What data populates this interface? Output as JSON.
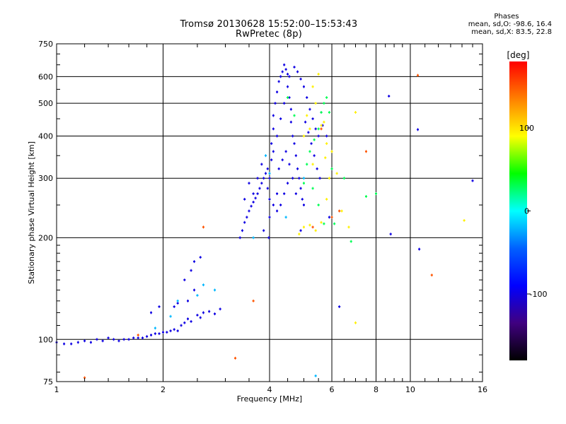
{
  "title_line1": "Tromsø 20130628 15:52:00–15:53:43",
  "title_line2": "RwPretec (8p)",
  "stats": {
    "header": "Phases",
    "line1": "mean, sd,O: -98.6, 16.4",
    "line2": "mean, sd,X:  83.5, 22.8"
  },
  "colorbar": {
    "label": "[deg]",
    "ticks": [
      "100",
      "0",
      "-100"
    ],
    "tick_values": [
      100,
      0,
      -100
    ],
    "range": [
      -180,
      180
    ],
    "colors": [
      "#ff0000",
      "#ff8000",
      "#ffff00",
      "#00ff00",
      "#00ffff",
      "#0060ff",
      "#0000ff",
      "#400080",
      "#000000"
    ]
  },
  "chart_data": {
    "type": "scatter",
    "title": "Tromsø 20130628 15:52:00–15:53:43",
    "subtitle": "RwPretec (8p)",
    "xlabel": "Frequency [MHz]",
    "ylabel": "Stationary phase Virtual Height [km]",
    "x_scale": "log",
    "y_scale": "log",
    "xlim": [
      1,
      16
    ],
    "ylim": [
      75,
      750
    ],
    "x_ticks": [
      1,
      2,
      4,
      6,
      8,
      10,
      16
    ],
    "x_tick_labels": [
      "1",
      "2",
      "4",
      "6",
      "8",
      "10",
      "16"
    ],
    "y_ticks": [
      75,
      100,
      200,
      300,
      400,
      500,
      600,
      750
    ],
    "y_tick_labels": [
      "75",
      "100",
      "200",
      "300",
      "400",
      "500",
      "600",
      "750"
    ],
    "grid": true,
    "series": [
      {
        "color_value": -100,
        "points": [
          [
            1.0,
            98
          ],
          [
            1.05,
            97
          ],
          [
            1.1,
            97
          ],
          [
            1.15,
            98
          ],
          [
            1.2,
            99
          ],
          [
            1.25,
            98
          ],
          [
            1.3,
            100
          ],
          [
            1.35,
            99
          ],
          [
            1.4,
            101
          ],
          [
            1.45,
            100
          ],
          [
            1.5,
            99
          ],
          [
            1.55,
            100
          ],
          [
            1.6,
            100
          ],
          [
            1.65,
            101
          ],
          [
            1.7,
            101
          ],
          [
            1.75,
            101
          ],
          [
            1.8,
            102
          ],
          [
            1.85,
            103
          ],
          [
            1.9,
            104
          ],
          [
            1.95,
            104
          ],
          [
            2.0,
            105
          ],
          [
            2.05,
            105
          ],
          [
            2.1,
            106
          ],
          [
            2.15,
            107
          ],
          [
            2.2,
            106
          ],
          [
            2.25,
            110
          ],
          [
            2.3,
            112
          ],
          [
            2.35,
            115
          ],
          [
            2.4,
            113
          ],
          [
            2.5,
            118
          ],
          [
            2.55,
            116
          ],
          [
            2.6,
            120
          ],
          [
            2.7,
            121
          ],
          [
            2.8,
            119
          ],
          [
            2.9,
            123
          ],
          [
            1.85,
            120
          ],
          [
            1.95,
            125
          ],
          [
            2.15,
            125
          ],
          [
            2.2,
            128
          ],
          [
            2.35,
            130
          ],
          [
            2.45,
            140
          ],
          [
            2.4,
            160
          ],
          [
            2.45,
            170
          ],
          [
            2.55,
            175
          ],
          [
            2.3,
            150
          ],
          [
            3.3,
            200
          ],
          [
            3.35,
            210
          ],
          [
            3.4,
            222
          ],
          [
            3.45,
            230
          ],
          [
            3.5,
            240
          ],
          [
            3.55,
            248
          ],
          [
            3.6,
            255
          ],
          [
            3.65,
            262
          ],
          [
            3.7,
            270
          ],
          [
            3.75,
            280
          ],
          [
            3.8,
            290
          ],
          [
            3.85,
            300
          ],
          [
            3.9,
            310
          ],
          [
            3.95,
            320
          ],
          [
            3.4,
            260
          ],
          [
            3.5,
            290
          ],
          [
            3.6,
            270
          ],
          [
            3.7,
            300
          ],
          [
            3.8,
            330
          ],
          [
            3.95,
            280
          ],
          [
            3.98,
            200
          ],
          [
            4.0,
            260
          ],
          [
            4.0,
            300
          ],
          [
            4.05,
            340
          ],
          [
            4.05,
            380
          ],
          [
            4.1,
            420
          ],
          [
            4.1,
            460
          ],
          [
            4.15,
            500
          ],
          [
            4.2,
            540
          ],
          [
            4.25,
            580
          ],
          [
            4.3,
            600
          ],
          [
            4.35,
            620
          ],
          [
            4.4,
            650
          ],
          [
            4.45,
            630
          ],
          [
            4.5,
            610
          ],
          [
            4.5,
            560
          ],
          [
            4.55,
            520
          ],
          [
            4.6,
            480
          ],
          [
            4.6,
            440
          ],
          [
            4.65,
            400
          ],
          [
            4.7,
            380
          ],
          [
            4.75,
            350
          ],
          [
            4.8,
            320
          ],
          [
            4.85,
            300
          ],
          [
            4.9,
            280
          ],
          [
            4.95,
            260
          ],
          [
            5.0,
            250
          ],
          [
            4.2,
            240
          ],
          [
            4.3,
            250
          ],
          [
            4.4,
            270
          ],
          [
            4.5,
            290
          ],
          [
            4.1,
            360
          ],
          [
            4.2,
            400
          ],
          [
            4.3,
            450
          ],
          [
            4.4,
            500
          ],
          [
            4.55,
            600
          ],
          [
            4.7,
            640
          ],
          [
            4.8,
            620
          ],
          [
            4.9,
            590
          ],
          [
            5.0,
            560
          ],
          [
            5.1,
            520
          ],
          [
            5.2,
            480
          ],
          [
            5.3,
            450
          ],
          [
            5.4,
            420
          ],
          [
            5.5,
            400
          ],
          [
            4.25,
            320
          ],
          [
            4.35,
            340
          ],
          [
            4.45,
            360
          ],
          [
            4.55,
            330
          ],
          [
            4.65,
            300
          ],
          [
            4.75,
            270
          ],
          [
            5.05,
            440
          ],
          [
            5.15,
            410
          ],
          [
            5.25,
            380
          ],
          [
            5.35,
            350
          ],
          [
            5.45,
            320
          ],
          [
            5.55,
            300
          ],
          [
            5.6,
            470
          ],
          [
            5.65,
            430
          ],
          [
            4.0,
            230
          ],
          [
            4.1,
            250
          ],
          [
            4.2,
            270
          ],
          [
            5.8,
            400
          ],
          [
            6.3,
            125
          ],
          [
            8.8,
            205
          ],
          [
            8.7,
            525
          ],
          [
            10.5,
            418
          ],
          [
            10.6,
            185
          ],
          [
            15.0,
            295
          ],
          [
            5.9,
            230
          ],
          [
            3.85,
            210
          ],
          [
            4.9,
            210
          ]
        ]
      },
      {
        "color_value": -20,
        "points": [
          [
            2.5,
            135
          ],
          [
            2.2,
            130
          ],
          [
            2.6,
            145
          ],
          [
            1.9,
            108
          ],
          [
            2.1,
            117
          ],
          [
            5.4,
            78
          ],
          [
            3.6,
            200
          ],
          [
            4.45,
            230
          ],
          [
            4.0,
            310
          ],
          [
            5.0,
            300
          ],
          [
            2.8,
            140
          ],
          [
            3.9,
            350
          ]
        ]
      },
      {
        "color_value": 30,
        "points": [
          [
            5.1,
            330
          ],
          [
            5.2,
            360
          ],
          [
            5.35,
            390
          ],
          [
            5.5,
            420
          ],
          [
            5.6,
            470
          ],
          [
            5.7,
            500
          ],
          [
            5.8,
            520
          ],
          [
            5.9,
            470
          ],
          [
            5.5,
            250
          ],
          [
            5.7,
            220
          ],
          [
            6.1,
            220
          ],
          [
            6.5,
            300
          ],
          [
            7.5,
            265
          ],
          [
            6.8,
            195
          ],
          [
            4.5,
            520
          ],
          [
            4.7,
            460
          ],
          [
            5.0,
            290
          ],
          [
            5.3,
            280
          ],
          [
            6.0,
            320
          ],
          [
            8.0,
            270
          ]
        ]
      },
      {
        "color_value": 95,
        "points": [
          [
            5.0,
            215
          ],
          [
            5.2,
            218
          ],
          [
            5.4,
            210
          ],
          [
            5.6,
            222
          ],
          [
            5.8,
            260
          ],
          [
            5.9,
            300
          ],
          [
            5.8,
            380
          ],
          [
            5.6,
            430
          ],
          [
            5.4,
            500
          ],
          [
            5.3,
            560
          ],
          [
            5.5,
            610
          ],
          [
            5.7,
            440
          ],
          [
            6.0,
            360
          ],
          [
            6.2,
            310
          ],
          [
            6.4,
            240
          ],
          [
            6.7,
            215
          ],
          [
            7.0,
            470
          ],
          [
            7.0,
            112
          ],
          [
            14.2,
            225
          ],
          [
            4.85,
            205
          ],
          [
            5.0,
            400
          ],
          [
            5.1,
            460
          ],
          [
            5.2,
            420
          ],
          [
            5.3,
            330
          ],
          [
            5.75,
            345
          ]
        ]
      },
      {
        "color_value": 150,
        "points": [
          [
            2.6,
            215
          ],
          [
            3.2,
            88
          ],
          [
            3.6,
            130
          ],
          [
            5.3,
            215
          ],
          [
            5.6,
            420
          ],
          [
            6.3,
            240
          ],
          [
            7.5,
            360
          ],
          [
            11.5,
            155
          ],
          [
            10.5,
            605
          ],
          [
            6.0,
            230
          ],
          [
            1.2,
            77
          ],
          [
            1.7,
            103
          ]
        ]
      }
    ]
  }
}
